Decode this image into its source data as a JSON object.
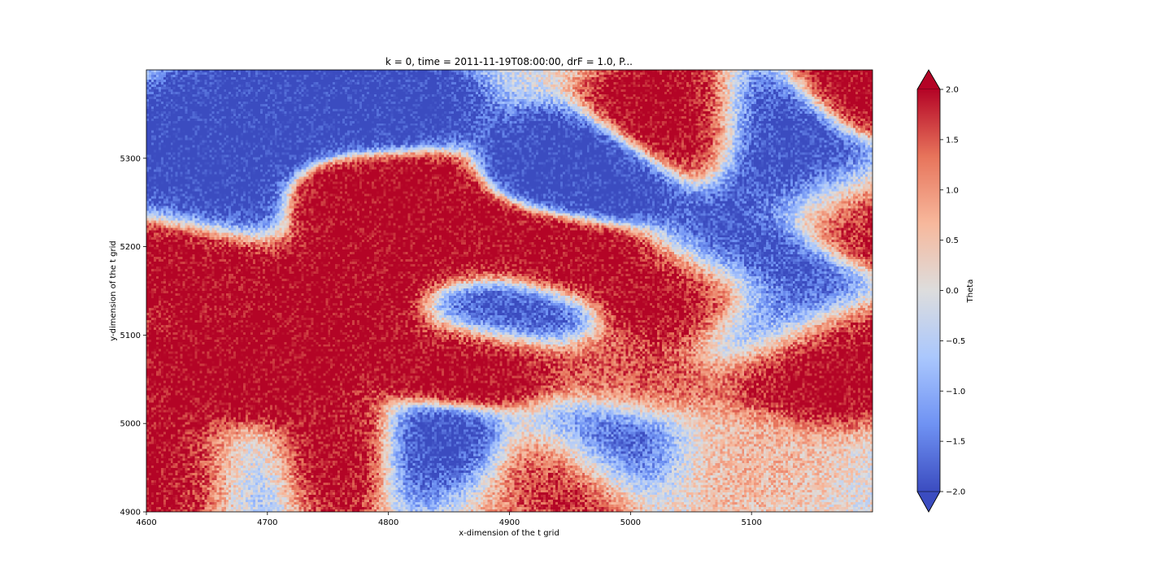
{
  "chart_data": {
    "type": "heatmap",
    "title": "k = 0, time = 2011-11-19T08:00:00, drF = 1.0, P...",
    "xlabel": "x-dimension of the t grid",
    "ylabel": "y-dimension of the t grid",
    "xlim": [
      4600,
      5200
    ],
    "ylim": [
      4900,
      5400
    ],
    "xticks": [
      4600,
      4700,
      4800,
      4900,
      5000,
      5100
    ],
    "yticks": [
      4900,
      5000,
      5100,
      5200,
      5300
    ],
    "colormap": "coolwarm",
    "colorbar": {
      "label": "Theta",
      "vmin": -2.0,
      "vmax": 2.0,
      "extend": "both",
      "ticks": [
        "−2.0",
        "−1.5",
        "−1.0",
        "−0.5",
        "0.0",
        "0.5",
        "1.0",
        "1.5",
        "2.0"
      ],
      "tick_values": [
        -2.0,
        -1.5,
        -1.0,
        -0.5,
        0.0,
        0.5,
        1.0,
        1.5,
        2.0
      ]
    },
    "colors": {
      "cmap_stops": [
        "#3b4cc0",
        "#6f92f3",
        "#aac7fd",
        "#dddddd",
        "#f7b89c",
        "#e7745b",
        "#b40426"
      ]
    },
    "features": [
      {
        "kind": "warm",
        "x": 4680,
        "y": 5060,
        "value": 2.0
      },
      {
        "kind": "warm",
        "x": 4760,
        "y": 5130,
        "value": 2.0
      },
      {
        "kind": "warm",
        "x": 4620,
        "y": 5200,
        "value": 2.0
      },
      {
        "kind": "warm",
        "x": 4790,
        "y": 5260,
        "value": 2.0
      },
      {
        "kind": "warm",
        "x": 4850,
        "y": 5200,
        "value": 1.9
      },
      {
        "kind": "warm",
        "x": 5050,
        "y": 5340,
        "value": 2.0
      },
      {
        "kind": "warm",
        "x": 5150,
        "y": 5080,
        "value": 2.0
      },
      {
        "kind": "warm",
        "x": 5060,
        "y": 5150,
        "value": 2.0
      },
      {
        "kind": "warm",
        "x": 4930,
        "y": 5190,
        "value": 1.9
      },
      {
        "kind": "warm",
        "x": 4870,
        "y": 5080,
        "value": 1.8
      },
      {
        "kind": "warm",
        "x": 4940,
        "y": 4950,
        "value": 1.8
      },
      {
        "kind": "warm",
        "x": 4630,
        "y": 4950,
        "value": 1.8
      },
      {
        "kind": "warm",
        "x": 4760,
        "y": 4960,
        "value": 1.8
      },
      {
        "kind": "warm",
        "x": 5180,
        "y": 5250,
        "value": 1.8
      },
      {
        "kind": "warm",
        "x": 5200,
        "y": 5380,
        "value": 1.8
      },
      {
        "kind": "cold",
        "x": 4680,
        "y": 5330,
        "value": -2.0
      },
      {
        "kind": "cold",
        "x": 4780,
        "y": 5350,
        "value": -1.9
      },
      {
        "kind": "cold",
        "x": 4890,
        "y": 5130,
        "value": -2.0
      },
      {
        "kind": "cold",
        "x": 4960,
        "y": 5280,
        "value": -1.9
      },
      {
        "kind": "cold",
        "x": 5110,
        "y": 5340,
        "value": -1.8
      },
      {
        "kind": "cold",
        "x": 5160,
        "y": 5270,
        "value": -1.8
      },
      {
        "kind": "cold",
        "x": 4840,
        "y": 4960,
        "value": -1.8
      },
      {
        "kind": "cold",
        "x": 4970,
        "y": 4970,
        "value": -1.6
      },
      {
        "kind": "cold",
        "x": 4680,
        "y": 4950,
        "value": -1.0
      },
      {
        "kind": "cold",
        "x": 5090,
        "y": 5180,
        "value": -1.6
      },
      {
        "kind": "cold",
        "x": 5120,
        "y": 5110,
        "value": -1.5
      },
      {
        "kind": "cold",
        "x": 4640,
        "y": 5250,
        "value": -1.8
      },
      {
        "kind": "neutral",
        "x": 5080,
        "y": 4960,
        "value": 0.2
      },
      {
        "kind": "neutral",
        "x": 4880,
        "y": 4920,
        "value": 0.3
      },
      {
        "kind": "neutral",
        "x": 5000,
        "y": 5050,
        "value": 0.6
      }
    ]
  }
}
